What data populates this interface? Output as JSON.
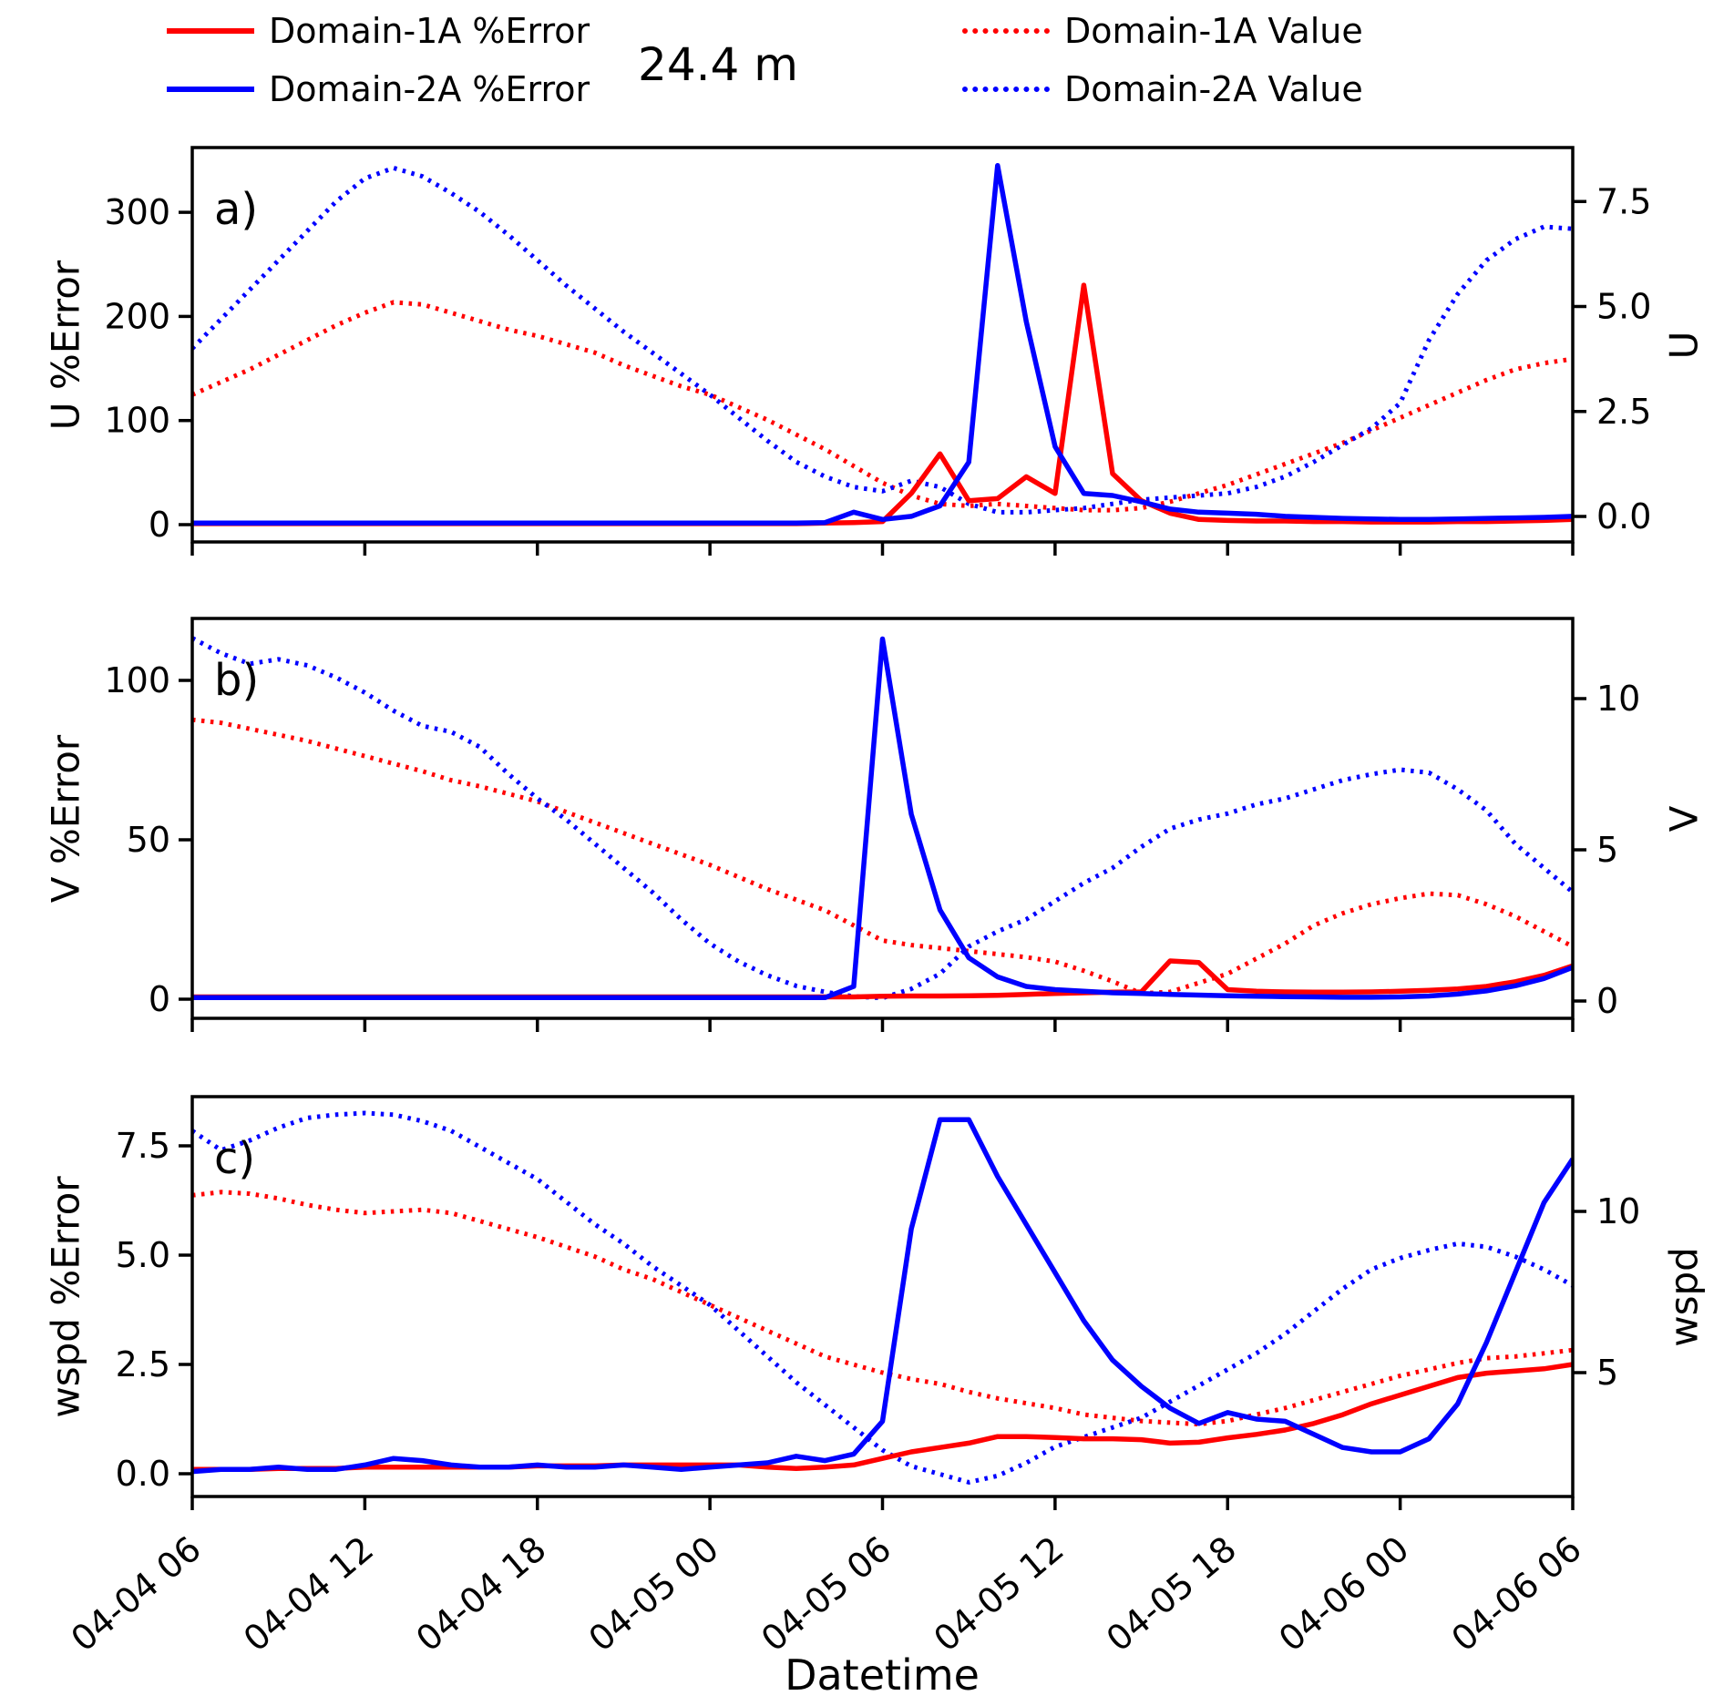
{
  "figure": {
    "title": "24.4 m",
    "background": "#ffffff",
    "axis_color": "#000000",
    "legend": {
      "items": [
        {
          "label": "Domain-1A %Error",
          "style": "solid",
          "color": "#ff0000"
        },
        {
          "label": "Domain-2A %Error",
          "style": "solid",
          "color": "#0000ff"
        },
        {
          "label": "Domain-1A Value",
          "style": "dotted",
          "color": "#ff0000"
        },
        {
          "label": "Domain-2A Value",
          "style": "dotted",
          "color": "#0000ff"
        }
      ]
    }
  },
  "chart_data": {
    "type": "line",
    "title": "24.4 m",
    "xlabel": "Datetime",
    "x_hours_start": 0,
    "x_hours_end": 48,
    "x_step_hours": 1,
    "x_tick_hours": [
      0,
      6,
      12,
      18,
      24,
      30,
      36,
      42,
      48
    ],
    "x_tick_labels": [
      "04-04 06",
      "04-04 12",
      "04-04 18",
      "04-05 00",
      "04-05 06",
      "04-05 12",
      "04-05 18",
      "04-06 00",
      "04-06 06"
    ],
    "legend_entries": [
      "Domain-1A %Error",
      "Domain-2A %Error",
      "Domain-1A Value",
      "Domain-2A Value"
    ],
    "grid": false,
    "panels": [
      {
        "id": "a",
        "corner_label": "a)",
        "ylabel_left": "U %Error",
        "ylabel_right": "U",
        "yticks_left": {
          "values": [
            0,
            100,
            200,
            300
          ],
          "labels": [
            "0",
            "100",
            "200",
            "300"
          ]
        },
        "yticks_right": {
          "values": [
            0,
            2.5,
            5,
            7.5
          ],
          "labels": [
            "0.0",
            "2.5",
            "5.0",
            "7.5"
          ]
        },
        "ylim_left_approx": [
          -17,
          362
        ],
        "ylim_right_approx": [
          -0.6,
          8.8
        ],
        "series": [
          {
            "name": "Domain-1A %Error",
            "axis": "left",
            "style": "solid",
            "color": "#ff0000",
            "values": [
              1,
              1,
              1,
              1,
              1,
              1,
              1,
              1,
              1,
              1,
              1,
              1,
              1,
              1,
              1,
              1,
              1,
              1,
              1,
              1,
              1,
              1,
              1.5,
              2,
              3,
              30,
              68,
              23,
              25,
              46,
              30,
              230,
              49,
              23,
              11,
              5,
              4,
              3.5,
              3.5,
              3,
              3,
              2.5,
              2.5,
              2.5,
              3,
              3,
              3.5,
              4,
              5
            ]
          },
          {
            "name": "Domain-2A %Error",
            "axis": "left",
            "style": "solid",
            "color": "#0000ff",
            "values": [
              1.5,
              1.5,
              1.5,
              1.5,
              1.5,
              1.5,
              1.5,
              1.5,
              1.5,
              1.5,
              1.5,
              1.5,
              1.5,
              1.5,
              1.5,
              1.5,
              1.5,
              1.5,
              1.5,
              1.5,
              1.5,
              1.5,
              2,
              12,
              5,
              8,
              18,
              60,
              345,
              195,
              75,
              30,
              28,
              22,
              15,
              12,
              11,
              10,
              8,
              7,
              6,
              5.5,
              5,
              5,
              5.5,
              6,
              6.5,
              7,
              8
            ]
          },
          {
            "name": "Domain-1A Value",
            "axis": "right",
            "style": "dotted",
            "color": "#ff0000",
            "values": [
              2.9,
              3.2,
              3.5,
              3.85,
              4.2,
              4.55,
              4.85,
              5.1,
              5.05,
              4.85,
              4.65,
              4.45,
              4.3,
              4.1,
              3.9,
              3.6,
              3.35,
              3.1,
              2.9,
              2.6,
              2.3,
              1.95,
              1.6,
              1.2,
              0.8,
              0.5,
              0.3,
              0.25,
              0.3,
              0.25,
              0.2,
              0.15,
              0.15,
              0.2,
              0.35,
              0.55,
              0.75,
              1.0,
              1.25,
              1.5,
              1.75,
              2.05,
              2.35,
              2.65,
              2.95,
              3.25,
              3.5,
              3.65,
              3.75
            ]
          },
          {
            "name": "Domain-2A Value",
            "axis": "right",
            "style": "dotted",
            "color": "#0000ff",
            "values": [
              4.0,
              4.7,
              5.4,
              6.1,
              6.8,
              7.5,
              8.05,
              8.3,
              8.1,
              7.7,
              7.25,
              6.7,
              6.1,
              5.5,
              4.95,
              4.4,
              3.9,
              3.4,
              2.9,
              2.35,
              1.8,
              1.3,
              0.95,
              0.7,
              0.6,
              0.85,
              0.7,
              0.3,
              0.1,
              0.1,
              0.15,
              0.2,
              0.3,
              0.4,
              0.45,
              0.5,
              0.55,
              0.7,
              0.95,
              1.3,
              1.7,
              2.1,
              2.7,
              4.2,
              5.3,
              6.1,
              6.6,
              6.9,
              6.85
            ]
          }
        ]
      },
      {
        "id": "b",
        "corner_label": "b)",
        "ylabel_left": "V %Error",
        "ylabel_right": "V",
        "yticks_left": {
          "values": [
            0,
            50,
            100
          ],
          "labels": [
            "0",
            "50",
            "100"
          ]
        },
        "yticks_right": {
          "values": [
            0,
            5,
            10
          ],
          "labels": [
            "0",
            "5",
            "10"
          ]
        },
        "ylim_left_approx": [
          -6,
          119
        ],
        "ylim_right_approx": [
          -0.6,
          12.6
        ],
        "series": [
          {
            "name": "Domain-1A %Error",
            "axis": "left",
            "style": "solid",
            "color": "#ff0000",
            "values": [
              0.7,
              0.7,
              0.7,
              0.7,
              0.7,
              0.7,
              0.7,
              0.7,
              0.7,
              0.7,
              0.7,
              0.7,
              0.7,
              0.7,
              0.7,
              0.7,
              0.7,
              0.7,
              0.7,
              0.7,
              0.7,
              0.7,
              0.7,
              0.7,
              0.9,
              1.0,
              1.0,
              1.1,
              1.2,
              1.5,
              1.8,
              2.0,
              2.2,
              2.3,
              12,
              11.5,
              3,
              2.5,
              2.3,
              2.2,
              2.2,
              2.3,
              2.5,
              2.8,
              3.2,
              4.0,
              5.5,
              7.5,
              10.5
            ]
          },
          {
            "name": "Domain-2A %Error",
            "axis": "left",
            "style": "solid",
            "color": "#0000ff",
            "values": [
              0.5,
              0.5,
              0.5,
              0.5,
              0.5,
              0.5,
              0.5,
              0.5,
              0.5,
              0.5,
              0.5,
              0.5,
              0.5,
              0.5,
              0.5,
              0.5,
              0.5,
              0.5,
              0.5,
              0.5,
              0.5,
              0.5,
              0.5,
              4,
              113,
              58,
              28,
              13,
              7,
              4,
              3,
              2.5,
              2,
              1.8,
              1.5,
              1.3,
              1.1,
              0.9,
              0.8,
              0.7,
              0.6,
              0.6,
              0.7,
              1.0,
              1.6,
              2.6,
              4.2,
              6.5,
              10
            ]
          },
          {
            "name": "Domain-1A Value",
            "axis": "right",
            "style": "dotted",
            "color": "#ff0000",
            "values": [
              9.3,
              9.2,
              9.0,
              8.8,
              8.6,
              8.35,
              8.1,
              7.85,
              7.6,
              7.3,
              7.1,
              6.85,
              6.6,
              6.25,
              5.9,
              5.55,
              5.2,
              4.85,
              4.5,
              4.1,
              3.7,
              3.35,
              3.0,
              2.5,
              2.0,
              1.85,
              1.75,
              1.65,
              1.55,
              1.45,
              1.3,
              1.0,
              0.65,
              0.25,
              0.3,
              0.6,
              0.9,
              1.4,
              1.9,
              2.5,
              2.9,
              3.2,
              3.4,
              3.55,
              3.5,
              3.2,
              2.8,
              2.3,
              1.8
            ]
          },
          {
            "name": "Domain-2A Value",
            "axis": "right",
            "style": "dotted",
            "color": "#0000ff",
            "values": [
              12.0,
              11.5,
              11.15,
              11.3,
              11.1,
              10.7,
              10.2,
              9.6,
              9.1,
              8.9,
              8.4,
              7.5,
              6.7,
              6.0,
              5.2,
              4.4,
              3.6,
              2.7,
              1.9,
              1.3,
              0.85,
              0.5,
              0.3,
              0.15,
              0.1,
              0.4,
              0.9,
              1.8,
              2.3,
              2.7,
              3.3,
              3.9,
              4.4,
              5.1,
              5.7,
              6.0,
              6.2,
              6.5,
              6.7,
              7.0,
              7.3,
              7.5,
              7.65,
              7.55,
              7.0,
              6.3,
              5.2,
              4.4,
              3.6
            ]
          }
        ]
      },
      {
        "id": "c",
        "corner_label": "c)",
        "ylabel_left": "wspd %Error",
        "ylabel_right": "wspd",
        "yticks_left": {
          "values": [
            0,
            2.5,
            5,
            7.5
          ],
          "labels": [
            "0.0",
            "2.5",
            "5.0",
            "7.5"
          ]
        },
        "yticks_right": {
          "values": [
            5,
            10
          ],
          "labels": [
            "5",
            "10"
          ]
        },
        "ylim_left_approx": [
          -0.5,
          8.6
        ],
        "ylim_right_approx": [
          1.2,
          13.6
        ],
        "series": [
          {
            "name": "Domain-1A %Error",
            "axis": "left",
            "style": "solid",
            "color": "#ff0000",
            "values": [
              0.1,
              0.1,
              0.1,
              0.12,
              0.12,
              0.12,
              0.15,
              0.15,
              0.15,
              0.15,
              0.15,
              0.15,
              0.18,
              0.18,
              0.18,
              0.2,
              0.2,
              0.2,
              0.2,
              0.2,
              0.15,
              0.12,
              0.15,
              0.2,
              0.35,
              0.5,
              0.6,
              0.7,
              0.85,
              0.85,
              0.83,
              0.8,
              0.8,
              0.78,
              0.7,
              0.72,
              0.82,
              0.9,
              1.0,
              1.15,
              1.35,
              1.6,
              1.8,
              2.0,
              2.2,
              2.3,
              2.35,
              2.4,
              2.5
            ]
          },
          {
            "name": "Domain-2A %Error",
            "axis": "left",
            "style": "solid",
            "color": "#0000ff",
            "values": [
              0.05,
              0.1,
              0.1,
              0.15,
              0.1,
              0.1,
              0.2,
              0.35,
              0.3,
              0.2,
              0.15,
              0.15,
              0.2,
              0.15,
              0.15,
              0.2,
              0.15,
              0.1,
              0.15,
              0.2,
              0.25,
              0.4,
              0.3,
              0.45,
              1.2,
              5.6,
              8.1,
              8.1,
              6.8,
              5.7,
              4.6,
              3.5,
              2.6,
              2.0,
              1.5,
              1.15,
              1.4,
              1.25,
              1.2,
              0.9,
              0.6,
              0.5,
              0.5,
              0.8,
              1.6,
              3.0,
              4.6,
              6.2,
              7.2
            ]
          },
          {
            "name": "Domain-1A Value",
            "axis": "right",
            "style": "dotted",
            "color": "#ff0000",
            "values": [
              10.5,
              10.6,
              10.55,
              10.4,
              10.2,
              10.05,
              9.95,
              10.0,
              10.05,
              9.95,
              9.7,
              9.45,
              9.2,
              8.9,
              8.6,
              8.2,
              7.9,
              7.5,
              7.1,
              6.7,
              6.3,
              5.9,
              5.5,
              5.25,
              5.0,
              4.8,
              4.65,
              4.4,
              4.2,
              4.05,
              3.9,
              3.7,
              3.6,
              3.5,
              3.45,
              3.4,
              3.5,
              3.7,
              3.9,
              4.15,
              4.4,
              4.65,
              4.9,
              5.1,
              5.3,
              5.45,
              5.5,
              5.6,
              5.7
            ]
          },
          {
            "name": "Domain-2A Value",
            "axis": "right",
            "style": "dotted",
            "color": "#0000ff",
            "values": [
              12.5,
              11.9,
              12.2,
              12.6,
              12.9,
              13.0,
              13.05,
              13.0,
              12.8,
              12.5,
              12.0,
              11.5,
              11.0,
              10.3,
              9.6,
              9.0,
              8.3,
              7.7,
              7.1,
              6.3,
              5.5,
              4.7,
              4.0,
              3.3,
              2.6,
              2.1,
              1.85,
              1.6,
              1.8,
              2.2,
              2.7,
              3.0,
              3.3,
              3.6,
              4.1,
              4.6,
              5.1,
              5.6,
              6.2,
              6.9,
              7.6,
              8.2,
              8.55,
              8.8,
              9.0,
              8.9,
              8.6,
              8.2,
              7.7
            ]
          }
        ]
      }
    ]
  }
}
